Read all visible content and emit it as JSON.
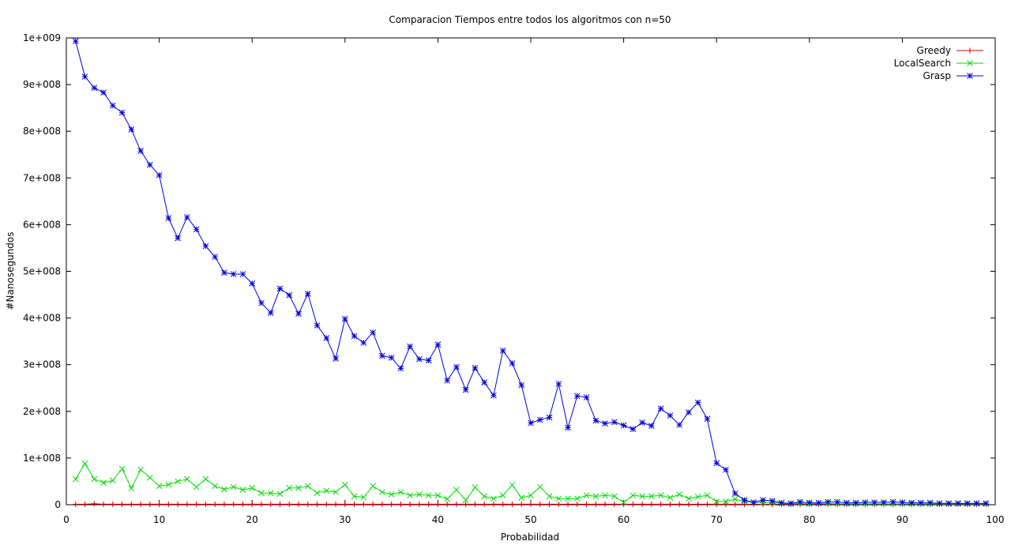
{
  "chart_data": {
    "type": "line",
    "title": "Comparacion Tiempos entre todos los algoritmos con n=50",
    "xlabel": "Probabilidad",
    "ylabel": "#Nanosegundos",
    "xlim": [
      0,
      100
    ],
    "ylim": [
      0,
      1000000000
    ],
    "x_ticks": [
      0,
      10,
      20,
      30,
      40,
      50,
      60,
      70,
      80,
      90,
      100
    ],
    "x_tick_labels": [
      "0",
      "10",
      "20",
      "30",
      "40",
      "50",
      "60",
      "70",
      "80",
      "90",
      "100"
    ],
    "y_ticks": [
      0,
      100000000,
      200000000,
      300000000,
      400000000,
      500000000,
      600000000,
      700000000,
      800000000,
      900000000,
      1000000000
    ],
    "y_tick_labels": [
      "0",
      "1e+008",
      "2e+008",
      "3e+008",
      "4e+008",
      "5e+008",
      "6e+008",
      "7e+008",
      "8e+008",
      "9e+008",
      "1e+009"
    ],
    "grid": false,
    "legend_position": "top-right",
    "x": [
      1,
      2,
      3,
      4,
      5,
      6,
      7,
      8,
      9,
      10,
      11,
      12,
      13,
      14,
      15,
      16,
      17,
      18,
      19,
      20,
      21,
      22,
      23,
      24,
      25,
      26,
      27,
      28,
      29,
      30,
      31,
      32,
      33,
      34,
      35,
      36,
      37,
      38,
      39,
      40,
      41,
      42,
      43,
      44,
      45,
      46,
      47,
      48,
      49,
      50,
      51,
      52,
      53,
      54,
      55,
      56,
      57,
      58,
      59,
      60,
      61,
      62,
      63,
      64,
      65,
      66,
      67,
      68,
      69,
      70,
      71,
      72,
      73,
      74,
      75,
      76,
      77,
      78,
      79,
      80,
      81,
      82,
      83,
      84,
      85,
      86,
      87,
      88,
      89,
      90,
      91,
      92,
      93,
      94,
      95,
      96,
      97,
      98,
      99
    ],
    "series": [
      {
        "name": "Greedy",
        "color": "#cc0000",
        "marker": "plus",
        "values": [
          1000000,
          1000000,
          2000000,
          1000000,
          1000000,
          1000000,
          1000000,
          1000000,
          1000000,
          1000000,
          1000000,
          1000000,
          1000000,
          1000000,
          1000000,
          1000000,
          1000000,
          1000000,
          1000000,
          1000000,
          1000000,
          1000000,
          1000000,
          1000000,
          1000000,
          1000000,
          1000000,
          1000000,
          1000000,
          1000000,
          1000000,
          1000000,
          1000000,
          1000000,
          1000000,
          1000000,
          1000000,
          1000000,
          1000000,
          1000000,
          1000000,
          1000000,
          1000000,
          1000000,
          1000000,
          1000000,
          1000000,
          1000000,
          1000000,
          1000000,
          1000000,
          1000000,
          1000000,
          1000000,
          1000000,
          1000000,
          1000000,
          1000000,
          1000000,
          1000000,
          1000000,
          1000000,
          1000000,
          1000000,
          1000000,
          1000000,
          1000000,
          1000000,
          1000000,
          1000000,
          1000000,
          1000000,
          1000000,
          1000000,
          1000000,
          1000000,
          1000000,
          1000000,
          1000000,
          1000000,
          1000000,
          1000000,
          1000000,
          1000000,
          1000000,
          1000000,
          1000000,
          1000000,
          1000000,
          1000000,
          1000000,
          1000000,
          1000000,
          1000000,
          1000000,
          1000000,
          1000000,
          1000000,
          1000000
        ]
      },
      {
        "name": "LocalSearch",
        "color": "#00dd00",
        "marker": "x",
        "values": [
          55000000,
          88000000,
          55000000,
          47000000,
          52000000,
          77000000,
          35000000,
          75000000,
          58000000,
          40000000,
          43000000,
          50000000,
          55000000,
          38000000,
          55000000,
          40000000,
          33000000,
          38000000,
          32000000,
          36000000,
          25000000,
          25000000,
          23000000,
          36000000,
          36000000,
          40000000,
          25000000,
          30000000,
          27000000,
          43000000,
          18000000,
          16000000,
          40000000,
          27000000,
          22000000,
          27000000,
          20000000,
          22000000,
          20000000,
          20000000,
          12000000,
          32000000,
          10000000,
          37000000,
          18000000,
          13000000,
          20000000,
          42000000,
          15000000,
          20000000,
          38000000,
          18000000,
          13000000,
          13000000,
          13000000,
          20000000,
          18000000,
          20000000,
          18000000,
          5000000,
          20000000,
          18000000,
          18000000,
          20000000,
          15000000,
          22000000,
          13000000,
          17000000,
          20000000,
          7000000,
          7000000,
          12000000,
          7000000,
          5000000,
          5000000,
          5000000,
          3000000,
          2000000,
          3000000,
          2000000,
          3000000,
          3000000,
          2000000,
          2000000,
          2000000,
          2000000,
          2000000,
          2000000,
          2000000,
          2000000,
          2000000,
          2000000,
          2000000,
          2000000,
          2000000,
          2000000,
          2000000,
          2000000,
          2000000
        ]
      },
      {
        "name": "Grasp",
        "color": "#0000dd",
        "marker": "star",
        "values": [
          993000000,
          917000000,
          893000000,
          883000000,
          855000000,
          840000000,
          804000000,
          758000000,
          728000000,
          706000000,
          614000000,
          571000000,
          616000000,
          590000000,
          554000000,
          531000000,
          497000000,
          494000000,
          494000000,
          474000000,
          432000000,
          411000000,
          463000000,
          449000000,
          409000000,
          452000000,
          384000000,
          357000000,
          313000000,
          398000000,
          361000000,
          347000000,
          369000000,
          319000000,
          315000000,
          292000000,
          339000000,
          312000000,
          309000000,
          343000000,
          266000000,
          295000000,
          246000000,
          293000000,
          262000000,
          234000000,
          330000000,
          303000000,
          256000000,
          175000000,
          182000000,
          187000000,
          259000000,
          165000000,
          233000000,
          230000000,
          180000000,
          174000000,
          177000000,
          170000000,
          162000000,
          176000000,
          169000000,
          206000000,
          191000000,
          171000000,
          198000000,
          219000000,
          184000000,
          89000000,
          75000000,
          24000000,
          10000000,
          5000000,
          10000000,
          8000000,
          4000000,
          3000000,
          6000000,
          4000000,
          4000000,
          6000000,
          6000000,
          4000000,
          4000000,
          5000000,
          5000000,
          5000000,
          6000000,
          5000000,
          4000000,
          4000000,
          4000000,
          3000000,
          3000000,
          3000000,
          3000000,
          3000000,
          3000000
        ]
      }
    ]
  }
}
